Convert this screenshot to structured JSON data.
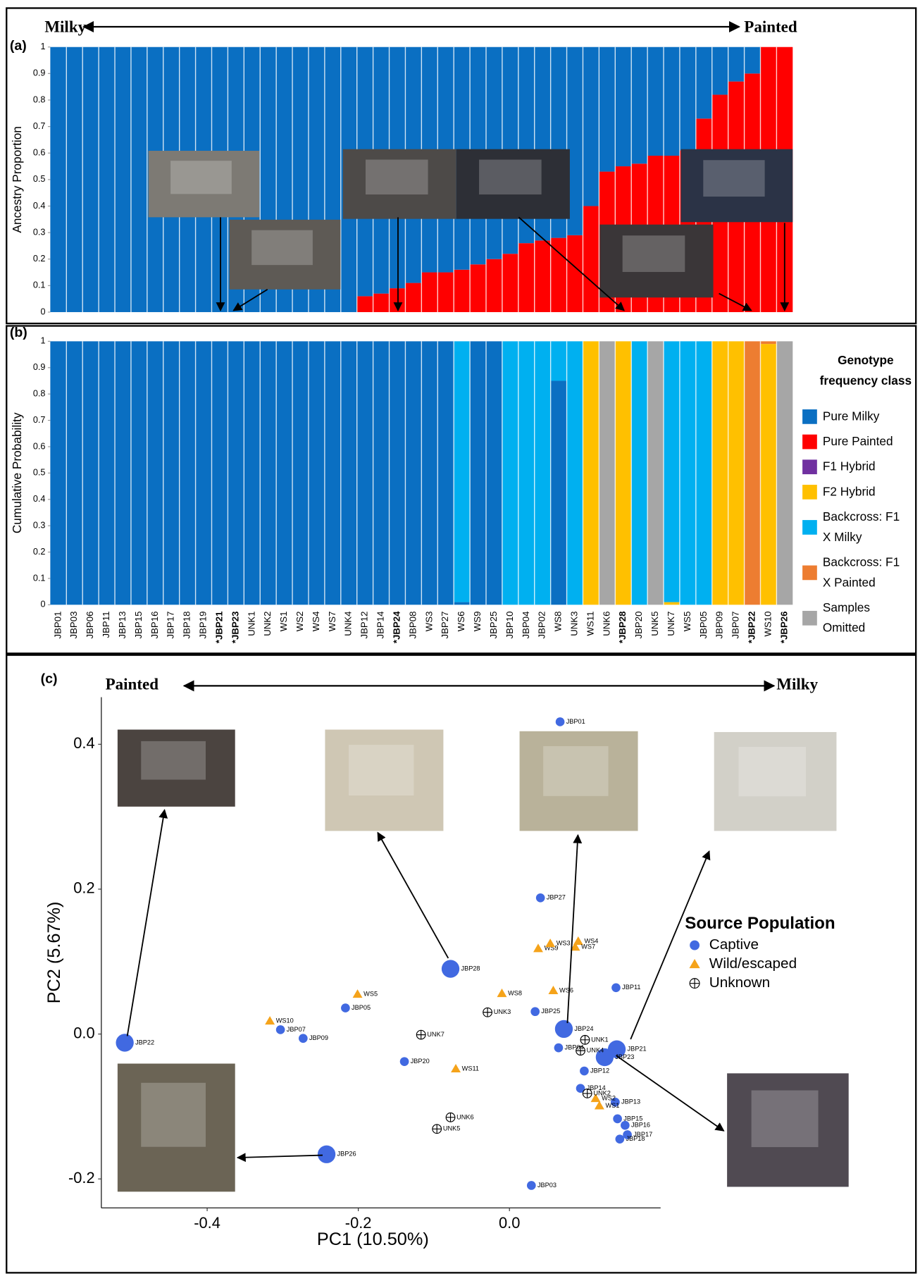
{
  "chart_data": [
    {
      "type": "bar",
      "stacked": true,
      "panel_label": "(a)",
      "ends": [
        "Milky",
        "Painted"
      ],
      "y_label": "Ancestry Proportion",
      "categories": [
        null,
        null,
        null,
        null,
        null,
        null,
        null,
        null,
        null,
        null,
        null,
        null,
        null,
        null,
        null,
        null,
        null,
        null,
        null,
        null,
        null,
        null,
        null,
        null,
        null,
        null,
        null,
        null,
        null,
        null,
        null,
        null,
        null,
        null,
        null,
        null,
        null,
        null,
        null,
        null,
        null,
        null,
        null,
        null,
        null,
        null
      ],
      "series": [
        {
          "color": "#ff0000",
          "values": [
            0,
            0,
            0,
            0,
            0,
            0,
            0,
            0,
            0,
            0,
            0,
            0,
            0,
            0,
            0,
            0,
            0,
            0,
            0,
            0.06,
            0.07,
            0.09,
            0.11,
            0.15,
            0.15,
            0.16,
            0.18,
            0.2,
            0.22,
            0.26,
            0.27,
            0.28,
            0.29,
            0.4,
            0.53,
            0.55,
            0.56,
            0.59,
            0.59,
            0.61,
            0.73,
            0.82,
            0.87,
            0.9,
            1,
            1
          ]
        },
        {
          "color": "#0a6fc2",
          "values": [
            1,
            1,
            1,
            1,
            1,
            1,
            1,
            1,
            1,
            1,
            1,
            1,
            1,
            1,
            1,
            1,
            1,
            1,
            1,
            0.94,
            0.93,
            0.91,
            0.89,
            0.85,
            0.85,
            0.84,
            0.82,
            0.8,
            0.78,
            0.74,
            0.73,
            0.72,
            0.71,
            0.6,
            0.47,
            0.45,
            0.44,
            0.41,
            0.41,
            0.39,
            0.27,
            0.18,
            0.13,
            0.1,
            0,
            0
          ]
        }
      ],
      "ylim": [
        0,
        1
      ],
      "yticks": [
        0,
        0.1,
        0.2,
        0.3,
        0.4,
        0.5,
        0.6,
        0.7,
        0.8,
        0.9,
        1
      ]
    },
    {
      "type": "bar",
      "stacked": true,
      "panel_label": "(b)",
      "y_label": "Cumulative Probability",
      "legend_title": "Genotype frequency class",
      "legend": "right",
      "categories": [
        "JBP01",
        "JBP03",
        "JBP06",
        "JBP11",
        "JBP13",
        "JBP15",
        "JBP16",
        "JBP17",
        "JBP18",
        "JBP19",
        "*JBP21",
        "*JBP23",
        "UNK1",
        "UNK2",
        "WS1",
        "WS2",
        "WS4",
        "WS7",
        "UNK4",
        "JBP12",
        "JBP14",
        "*JBP24",
        "JBP08",
        "WS3",
        "JBP27",
        "WS6",
        "WS9",
        "JBP25",
        "JBP10",
        "JBP04",
        "JBP02",
        "WS8",
        "UNK3",
        "WS11",
        "UNK6",
        "*JBP28",
        "JBP20",
        "UNK5",
        "UNK7",
        "WS5",
        "JBP05",
        "JBP09",
        "JBP07",
        "*JBP22",
        "WS10",
        "*JBP26"
      ],
      "series": [
        {
          "name": "Pure Milky",
          "color": "#0a6fc2",
          "values": [
            1,
            1,
            1,
            1,
            1,
            1,
            1,
            1,
            1,
            1,
            1,
            1,
            1,
            1,
            1,
            1,
            1,
            1,
            1,
            1,
            1,
            1,
            1,
            1,
            1,
            0.01,
            1,
            1,
            0,
            0,
            0,
            0.85,
            0,
            0,
            0,
            0,
            0,
            0,
            0,
            0,
            0,
            0,
            0,
            0,
            0,
            0
          ]
        },
        {
          "name": "Pure Painted",
          "color": "#ff0000",
          "values": [
            0,
            0,
            0,
            0,
            0,
            0,
            0,
            0,
            0,
            0,
            0,
            0,
            0,
            0,
            0,
            0,
            0,
            0,
            0,
            0,
            0,
            0,
            0,
            0,
            0,
            0,
            0,
            0,
            0,
            0,
            0,
            0,
            0,
            0,
            0,
            0,
            0,
            0,
            0,
            0,
            0,
            0,
            0,
            0,
            0,
            0
          ]
        },
        {
          "name": "F1 Hybrid",
          "color": "#7030a0",
          "values": [
            0,
            0,
            0,
            0,
            0,
            0,
            0,
            0,
            0,
            0,
            0,
            0,
            0,
            0,
            0,
            0,
            0,
            0,
            0,
            0,
            0,
            0,
            0,
            0,
            0,
            0,
            0,
            0,
            0,
            0,
            0,
            0,
            0,
            0,
            0,
            0,
            0,
            0,
            0,
            0,
            0,
            0,
            0,
            0,
            0,
            0
          ]
        },
        {
          "name": "F2 Hybrid",
          "color": "#ffc000",
          "values": [
            0,
            0,
            0,
            0,
            0,
            0,
            0,
            0,
            0,
            0,
            0,
            0,
            0,
            0,
            0,
            0,
            0,
            0,
            0,
            0,
            0,
            0,
            0,
            0,
            0,
            0,
            0,
            0,
            0,
            0,
            0,
            0,
            0,
            1,
            0,
            1,
            0,
            0,
            0.01,
            0,
            0,
            1,
            1,
            0,
            0.99,
            0
          ]
        },
        {
          "name": "Backcross: F1 X Milky",
          "color": "#00b0f0",
          "values": [
            0,
            0,
            0,
            0,
            0,
            0,
            0,
            0,
            0,
            0,
            0,
            0,
            0,
            0,
            0,
            0,
            0,
            0,
            0,
            0,
            0,
            0,
            0,
            0,
            0,
            0.99,
            0,
            0,
            1,
            1,
            1,
            0.15,
            1,
            0,
            0,
            0,
            1,
            0,
            0.99,
            1,
            1,
            0,
            0,
            0,
            0,
            0
          ]
        },
        {
          "name": "Backcross: F1 X Painted",
          "color": "#ed7d31",
          "values": [
            0,
            0,
            0,
            0,
            0,
            0,
            0,
            0,
            0,
            0,
            0,
            0,
            0,
            0,
            0,
            0,
            0,
            0,
            0,
            0,
            0,
            0,
            0,
            0,
            0,
            0,
            0,
            0,
            0,
            0,
            0,
            0,
            0,
            0,
            0,
            0,
            0,
            0,
            0,
            0,
            0,
            0,
            0,
            1,
            0.01,
            0
          ]
        },
        {
          "name": "Samples Omitted",
          "color": "#a6a6a6",
          "values": [
            0,
            0,
            0,
            0,
            0,
            0,
            0,
            0,
            0,
            0,
            0,
            0,
            0,
            0,
            0,
            0,
            0,
            0,
            0,
            0,
            0,
            0,
            0,
            0,
            0,
            0,
            0,
            0,
            0,
            0,
            0,
            0,
            0,
            0,
            1,
            0,
            0,
            1,
            0,
            0,
            0,
            0,
            0,
            0,
            0,
            1
          ]
        }
      ],
      "ylim": [
        0,
        1
      ],
      "yticks": [
        0,
        0.1,
        0.2,
        0.3,
        0.4,
        0.5,
        0.6,
        0.7,
        0.8,
        0.9,
        1
      ]
    },
    {
      "type": "scatter",
      "panel_label": "(c)",
      "ends": [
        "Painted",
        "Milky"
      ],
      "x_label": "PC1 (10.50%)",
      "y_label": "PC2 (5.67%)",
      "legend_title": "Source Population",
      "legend": "right",
      "series": [
        {
          "name": "Captive",
          "color": "#4169e1",
          "marker": "circle",
          "labels": [
            "JBP22",
            "JBP07",
            "JBP09",
            "JBP05",
            "JBP28",
            "JBP20",
            "JBP26",
            "JBP03",
            "JBP27",
            "JBP25",
            "JBP01",
            "JBP24",
            "JBP04",
            "JBP11",
            "JBP21",
            "JBP23",
            "JBP12",
            "JBP14",
            "JBP13",
            "JBP15",
            "JBP16",
            "JBP17",
            "JBP18"
          ],
          "x": [
            -0.509,
            -0.303,
            -0.273,
            -0.217,
            -0.078,
            -0.139,
            -0.242,
            0.029,
            0.041,
            0.034,
            0.067,
            0.072,
            0.065,
            0.141,
            0.142,
            0.126,
            0.099,
            0.094,
            0.14,
            0.143,
            0.153,
            0.156,
            0.146
          ],
          "values": [
            -0.012,
            0.006,
            -0.006,
            0.036,
            0.09,
            -0.038,
            -0.166,
            -0.209,
            0.188,
            0.031,
            0.431,
            0.007,
            -0.019,
            0.064,
            -0.021,
            -0.032,
            -0.051,
            -0.075,
            -0.094,
            -0.117,
            -0.126,
            -0.139,
            -0.145
          ],
          "sizes": [
            2,
            1,
            1,
            1,
            2,
            1,
            2,
            1,
            1,
            1,
            1,
            2,
            1,
            1,
            2,
            2,
            1,
            1,
            1,
            1,
            1,
            1,
            1
          ]
        },
        {
          "name": "Wild/escaped",
          "color": "#f5a31a",
          "marker": "triangle",
          "labels": [
            "WS10",
            "WS5",
            "WS8",
            "WS11",
            "WS6",
            "WS9",
            "WS3",
            "WS4",
            "WS7",
            "WS2",
            "WS1"
          ],
          "x": [
            -0.317,
            -0.201,
            -0.01,
            -0.071,
            0.058,
            0.038,
            0.054,
            0.091,
            0.087,
            0.114,
            0.119
          ],
          "values": [
            0.018,
            0.055,
            0.056,
            -0.048,
            0.06,
            0.118,
            0.125,
            0.128,
            0.12,
            -0.089,
            -0.099
          ]
        },
        {
          "name": "Unknown",
          "color": "#000000",
          "marker": "crosshair",
          "labels": [
            "UNK3",
            "UNK7",
            "UNK6",
            "UNK5",
            "UNK1",
            "UNK4",
            "UNK2"
          ],
          "x": [
            -0.029,
            -0.117,
            -0.078,
            -0.096,
            0.1,
            0.094,
            0.103
          ],
          "values": [
            0.03,
            -0.001,
            -0.115,
            -0.131,
            -0.008,
            -0.023,
            -0.082
          ]
        }
      ],
      "xlim": [
        -0.54,
        0.2
      ],
      "xticks": [
        -0.4,
        -0.2,
        {
          "value": 0,
          "label": "0.0"
        }
      ],
      "ylim": [
        -0.24,
        0.465
      ],
      "yticks": [
        -0.2,
        {
          "value": 0,
          "label": "0.0"
        },
        0.2,
        0.4
      ]
    }
  ]
}
